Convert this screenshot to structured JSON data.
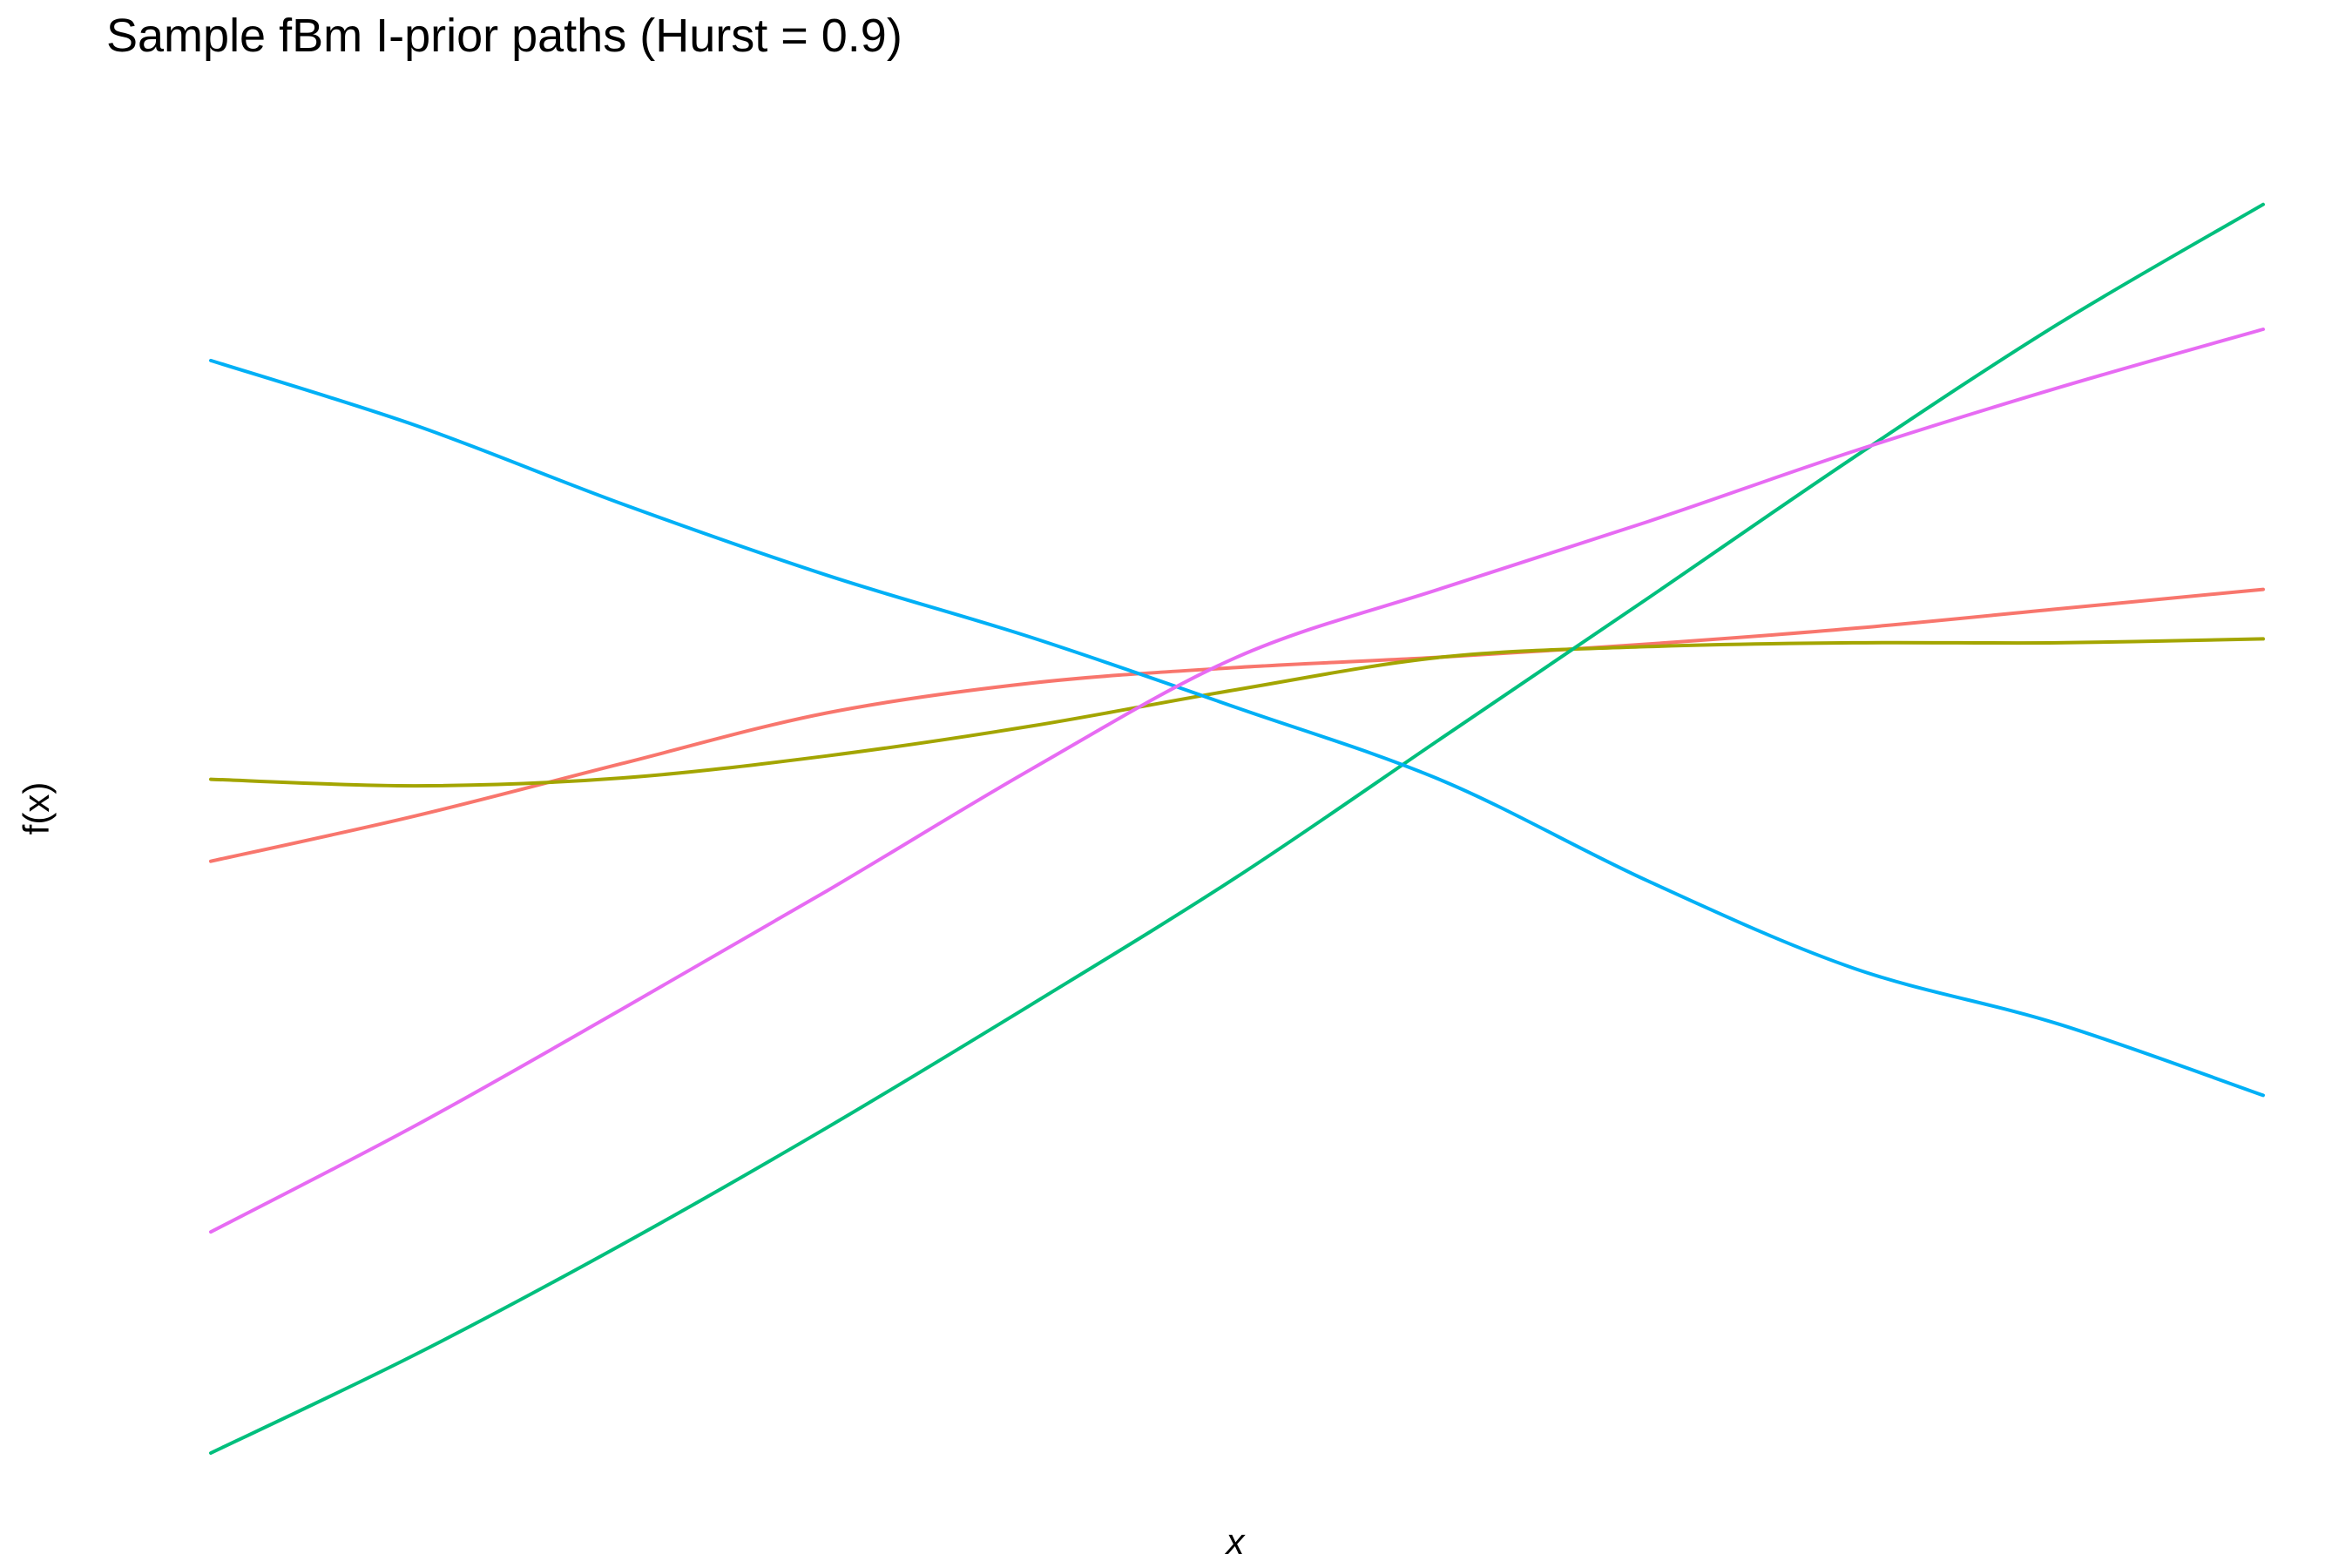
{
  "chart_data": {
    "type": "line",
    "title": "Sample fBm I-prior paths (Hurst = 0.9)",
    "xlabel": "x",
    "ylabel": "f(x)",
    "axis_ticks_shown": false,
    "grid": false,
    "legend": "none",
    "xlim": [
      0,
      1
    ],
    "ylim": [
      0,
      1
    ],
    "series": [
      {
        "color": "#F8766D",
        "x": [
          0,
          0.1,
          0.2,
          0.3,
          0.4,
          0.5,
          0.6,
          0.7,
          0.8,
          0.9,
          1.0
        ],
        "y": [
          0.455,
          0.49,
          0.53,
          0.569,
          0.592,
          0.604,
          0.612,
          0.622,
          0.634,
          0.649,
          0.664
        ]
      },
      {
        "color": "#A3A500",
        "x": [
          0,
          0.1,
          0.2,
          0.3,
          0.4,
          0.5,
          0.6,
          0.7,
          0.8,
          0.9,
          1.0
        ],
        "y": [
          0.518,
          0.513,
          0.519,
          0.536,
          0.559,
          0.587,
          0.612,
          0.62,
          0.623,
          0.623,
          0.626
        ]
      },
      {
        "color": "#00BF7D",
        "x": [
          0,
          0.1,
          0.2,
          0.3,
          0.4,
          0.5,
          0.6,
          0.7,
          0.8,
          0.9,
          1.0
        ],
        "y": [
          0.0,
          0.076,
          0.16,
          0.25,
          0.345,
          0.443,
          0.55,
          0.657,
          0.765,
          0.868,
          0.96
        ]
      },
      {
        "color": "#00B0F6",
        "x": [
          0,
          0.1,
          0.2,
          0.3,
          0.4,
          0.5,
          0.6,
          0.7,
          0.8,
          0.9,
          1.0
        ],
        "y": [
          0.84,
          0.79,
          0.73,
          0.675,
          0.627,
          0.573,
          0.517,
          0.44,
          0.373,
          0.33,
          0.275
        ]
      },
      {
        "color": "#E76BF3",
        "x": [
          0,
          0.1,
          0.2,
          0.3,
          0.4,
          0.5,
          0.6,
          0.7,
          0.8,
          0.9,
          1.0
        ],
        "y": [
          0.17,
          0.252,
          0.341,
          0.432,
          0.526,
          0.612,
          0.665,
          0.716,
          0.77,
          0.819,
          0.864
        ]
      }
    ]
  }
}
